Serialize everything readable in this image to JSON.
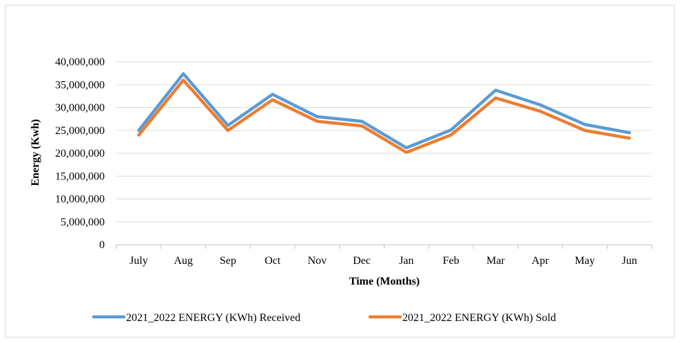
{
  "chart_data": {
    "type": "line",
    "title": "",
    "xlabel": "Time (Months)",
    "ylabel": "Energy (Kwh)",
    "categories": [
      "July",
      "Aug",
      "Sep",
      "Oct",
      "Nov",
      "Dec",
      "Jan",
      "Feb",
      "Mar",
      "Apr",
      "May",
      "Jun"
    ],
    "ylim": [
      0,
      40000000
    ],
    "yticks": [
      "0",
      "5,000,000",
      "10,000,000",
      "15,000,000",
      "20,000,000",
      "25,000,000",
      "30,000,000",
      "35,000,000",
      "40,000,000"
    ],
    "grid": true,
    "legend_position": "bottom",
    "series": [
      {
        "name": "2021_2022 ENERGY (KWh) Received",
        "color": "#5b9bd5",
        "values": [
          25000000,
          37400000,
          26100000,
          32900000,
          28000000,
          27000000,
          21200000,
          25100000,
          33800000,
          30600000,
          26300000,
          24500000
        ]
      },
      {
        "name": "2021_2022 ENERGY (KWh) Sold",
        "color": "#ed7d31",
        "values": [
          24000000,
          36000000,
          25000000,
          31700000,
          27000000,
          26000000,
          20200000,
          24000000,
          32100000,
          29200000,
          25000000,
          23300000
        ]
      }
    ]
  }
}
